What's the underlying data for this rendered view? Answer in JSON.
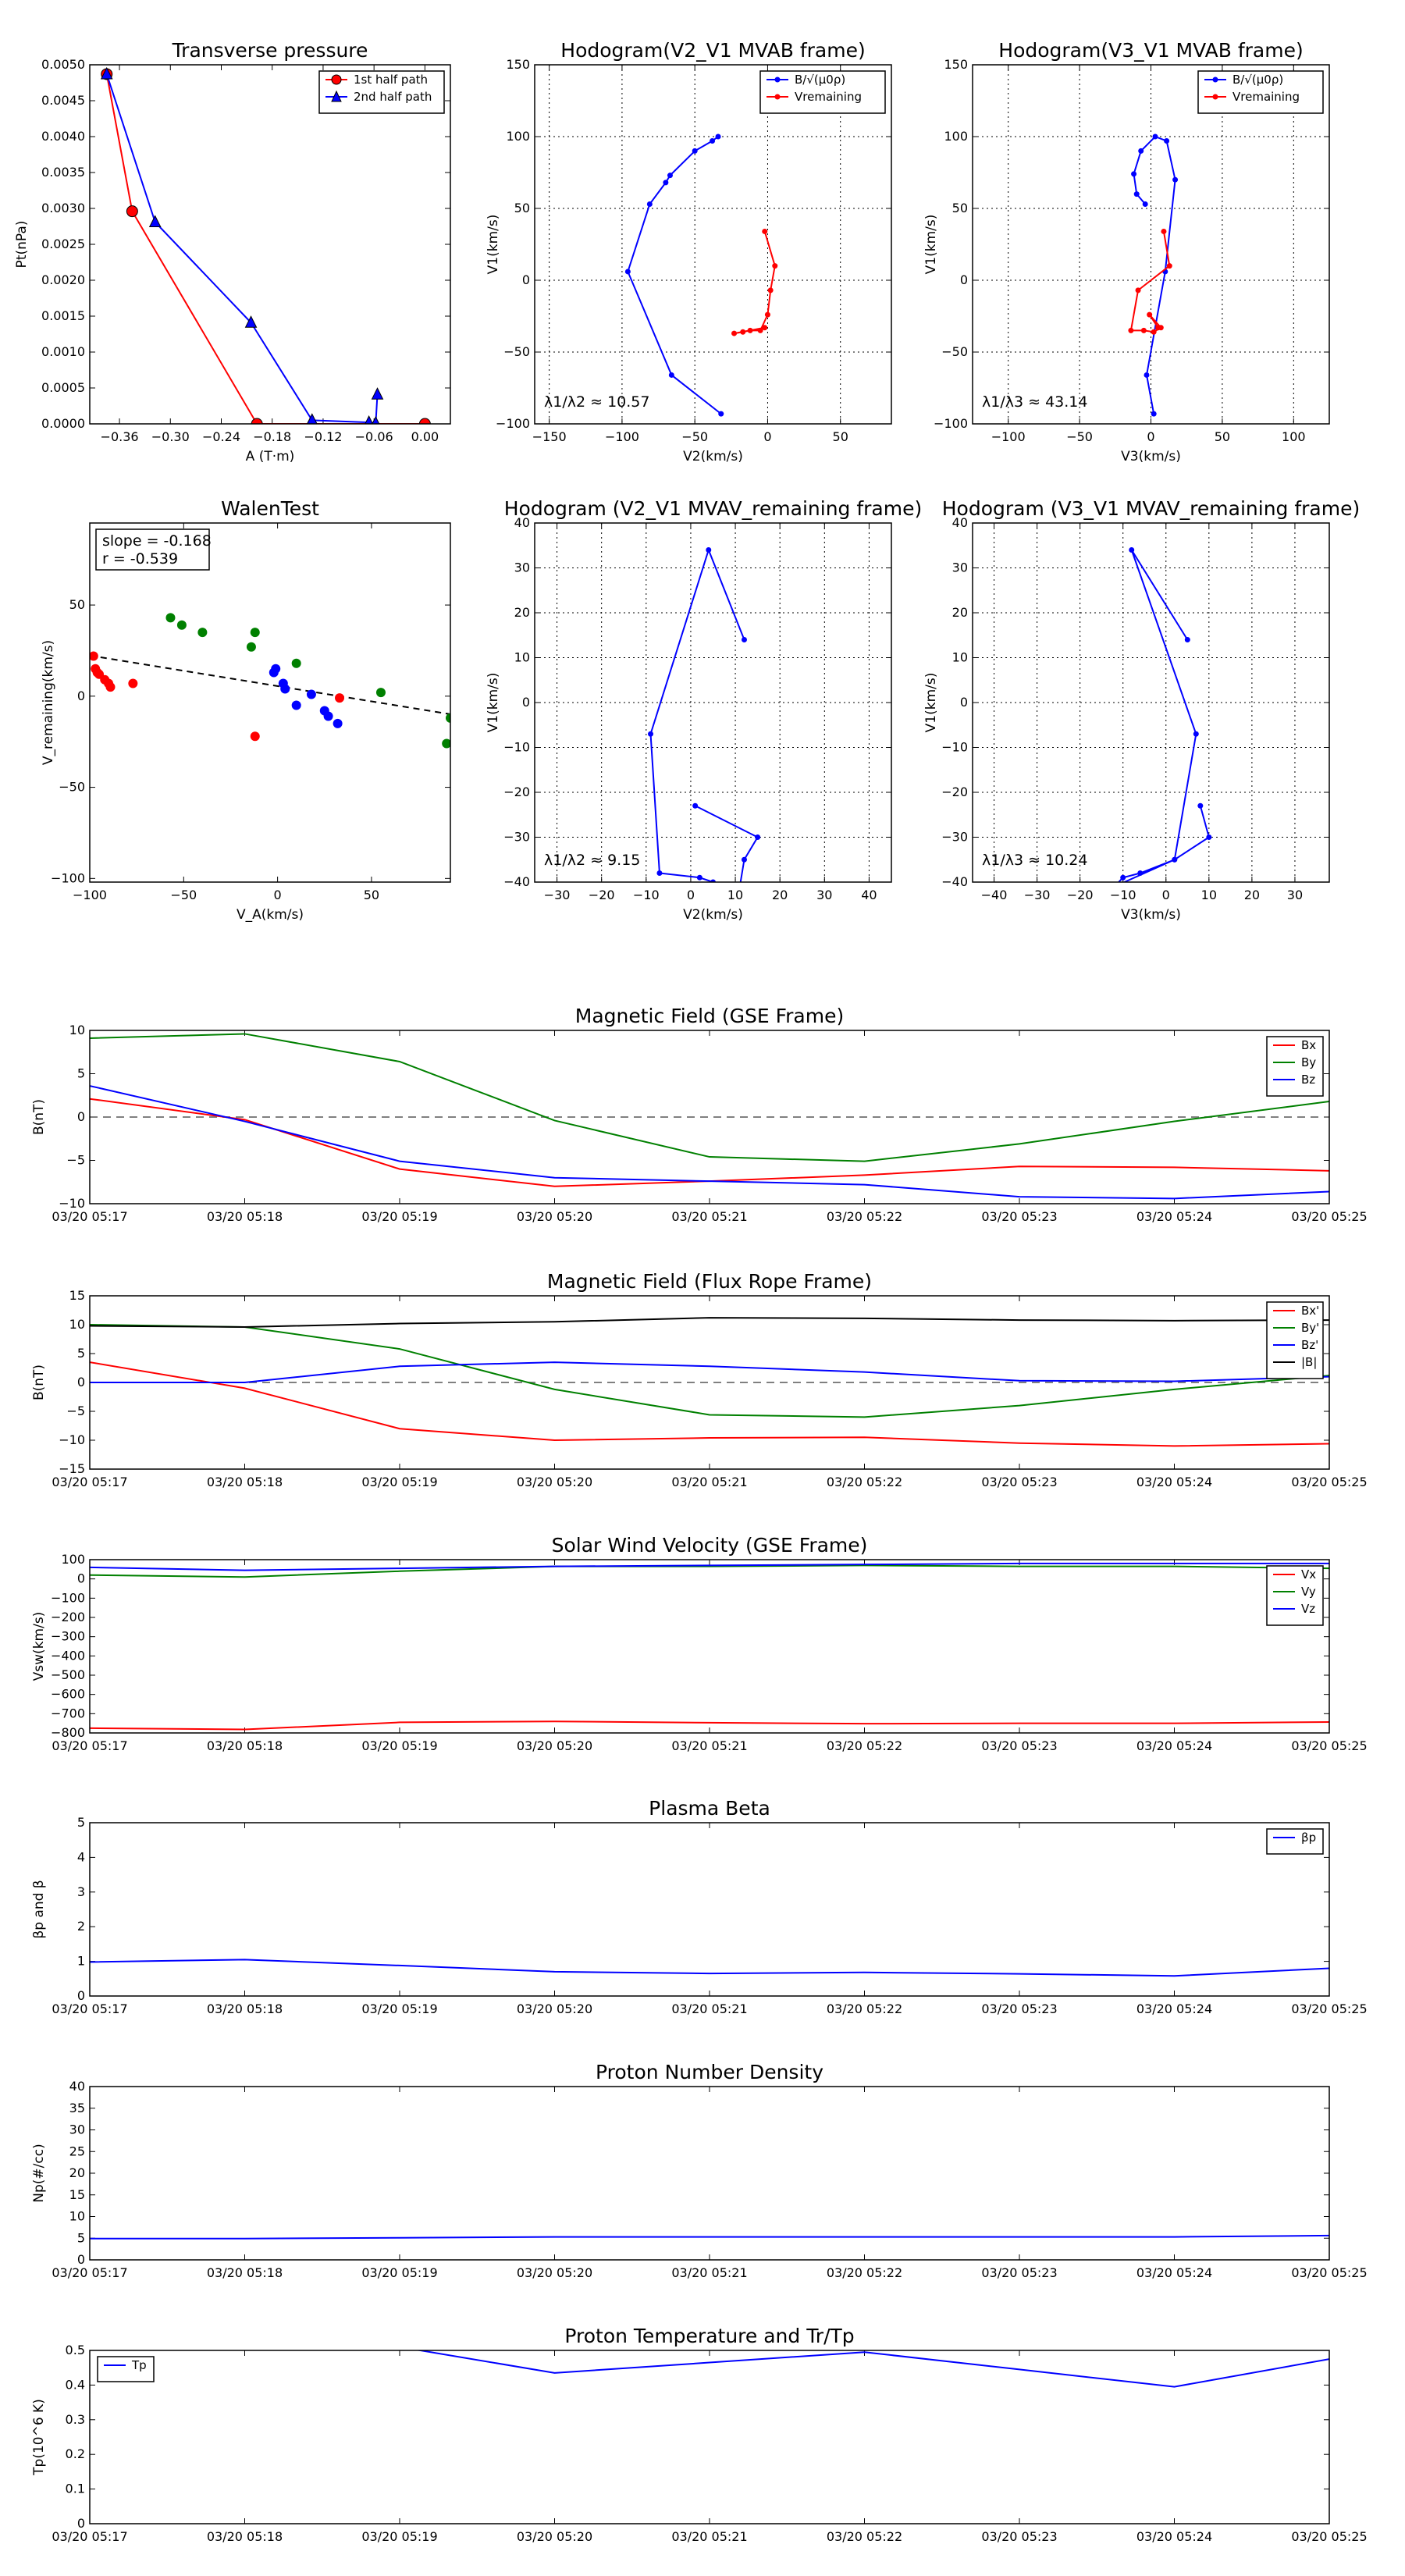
{
  "colors": {
    "red": "#ff0000",
    "green": "#008000",
    "blue": "#0000ff",
    "black": "#000000",
    "grey": "#808080"
  },
  "chart_data": [
    {
      "id": "transverse-pressure",
      "type": "line",
      "title": "Transverse pressure",
      "xlabel": "A (T·m)",
      "ylabel": "Pt(nPa)",
      "xlim": [
        -0.395,
        0.03
      ],
      "ylim": [
        0,
        0.005
      ],
      "xticks": [
        -0.36,
        -0.3,
        -0.24,
        -0.18,
        -0.12,
        -0.06,
        0.0
      ],
      "xticklabels": [
        "−0.36",
        "−0.30",
        "−0.24",
        "−0.18",
        "−0.12",
        "−0.06",
        "0.00"
      ],
      "yticks": [
        0,
        0.0005,
        0.001,
        0.0015,
        0.002,
        0.0025,
        0.003,
        0.0035,
        0.004,
        0.0045,
        0.005
      ],
      "yticklabels": [
        "0.0000",
        "0.0005",
        "0.0010",
        "0.0015",
        "0.0020",
        "0.0025",
        "0.0030",
        "0.0035",
        "0.0040",
        "0.0045",
        "0.0050"
      ],
      "grid": false,
      "legend": "top-right",
      "series": [
        {
          "name": "1st half path",
          "color": "#ff0000",
          "marker": "circle",
          "x": [
            -0.375,
            -0.345,
            -0.198,
            0.0
          ],
          "y": [
            0.00487,
            0.00296,
            0.0,
            0.0
          ]
        },
        {
          "name": "2nd half path",
          "color": "#0000ff",
          "marker": "triangle",
          "x": [
            -0.375,
            -0.318,
            -0.205,
            -0.133,
            -0.066,
            -0.058,
            -0.056
          ],
          "y": [
            0.00487,
            0.00281,
            0.00141,
            5e-05,
            2e-05,
            1e-05,
            0.00041
          ]
        }
      ]
    },
    {
      "id": "hodogram-v2-v1-mvab",
      "type": "line",
      "title": "Hodogram(V2_V1 MVAB frame)",
      "xlabel": "V2(km/s)",
      "ylabel": "V1(km/s)",
      "xlim": [
        -160,
        85
      ],
      "ylim": [
        -100,
        150
      ],
      "xticks": [
        -150,
        -100,
        -50,
        0,
        50
      ],
      "yticks": [
        -100,
        -50,
        0,
        50,
        100,
        150
      ],
      "grid": true,
      "legend": "top-right",
      "annotation": "λ1/λ2 ≈ 10.57",
      "series": [
        {
          "name": "B/√(μ0ρ)",
          "color": "#0000ff",
          "x": [
            -32,
            -66,
            -96,
            -81,
            -70,
            -67,
            -50,
            -38,
            -34
          ],
          "y": [
            -93,
            -66,
            6,
            53,
            68,
            73,
            90,
            97,
            100
          ]
        },
        {
          "name": "Vremaining",
          "color": "#ff0000",
          "x": [
            -2,
            5,
            2,
            0,
            -5,
            -12,
            -17,
            -23,
            -2
          ],
          "y": [
            34,
            10,
            -7,
            -24,
            -35,
            -35,
            -36,
            -37,
            -33
          ]
        }
      ]
    },
    {
      "id": "hodogram-v3-v1-mvab",
      "type": "line",
      "title": "Hodogram(V3_V1 MVAB frame)",
      "xlabel": "V3(km/s)",
      "ylabel": "V1(km/s)",
      "xlim": [
        -125,
        125
      ],
      "ylim": [
        -100,
        150
      ],
      "xticks": [
        -100,
        -50,
        0,
        50,
        100
      ],
      "yticks": [
        -100,
        -50,
        0,
        50,
        100,
        150
      ],
      "grid": true,
      "legend": "top-right",
      "annotation": "λ1/λ3 ≈ 43.14",
      "series": [
        {
          "name": "B/√(μ0ρ)",
          "color": "#0000ff",
          "x": [
            2,
            -3,
            10,
            17,
            11,
            3,
            -7,
            -12,
            -10,
            -4
          ],
          "y": [
            -93,
            -66,
            6,
            70,
            97,
            100,
            90,
            74,
            60,
            53
          ]
        },
        {
          "name": "Vremaining",
          "color": "#ff0000",
          "x": [
            9,
            13,
            -9,
            -14,
            -5,
            2,
            7,
            -1,
            5
          ],
          "y": [
            34,
            10,
            -7,
            -35,
            -35,
            -36,
            -33,
            -24,
            -33
          ]
        }
      ]
    },
    {
      "id": "walen-test",
      "type": "scatter",
      "title": "WalenTest",
      "xlabel": "V_A(km/s)",
      "ylabel": "V_remaining(km/s)",
      "xlim": [
        -100,
        92
      ],
      "ylim": [
        -102,
        95
      ],
      "xticks": [
        -100,
        -50,
        0,
        50
      ],
      "yticks": [
        -100,
        -50,
        0,
        50
      ],
      "grid": false,
      "annotation": [
        "slope = -0.168",
        "r = -0.539"
      ],
      "fit_line": {
        "x": [
          -100,
          92
        ],
        "y": [
          22.3,
          -9.9
        ]
      },
      "series": [
        {
          "name": "",
          "color": "#ff0000",
          "x": [
            -98,
            -97,
            -96,
            -95,
            -92,
            -90,
            -89,
            -77,
            -12,
            33
          ],
          "y": [
            22,
            15,
            13,
            12,
            9,
            7,
            5,
            7,
            -22,
            -1
          ]
        },
        {
          "name": "",
          "color": "#008000",
          "x": [
            -57,
            -51,
            -40,
            -14,
            -12,
            10,
            55,
            92,
            90
          ],
          "y": [
            43,
            39,
            35,
            27,
            35,
            18,
            2,
            -12,
            -26
          ]
        },
        {
          "name": "",
          "color": "#0000ff",
          "x": [
            -2,
            -1,
            3,
            4,
            10,
            18,
            25,
            27,
            32
          ],
          "y": [
            13,
            15,
            7,
            4,
            -5,
            1,
            -8,
            -11,
            -15
          ]
        }
      ]
    },
    {
      "id": "hodogram-v2-v1-mvav",
      "type": "line",
      "title": "Hodogram (V2_V1 MVAV_remaining frame)",
      "xlabel": "V2(km/s)",
      "ylabel": "V1(km/s)",
      "xlim": [
        -35,
        45
      ],
      "ylim": [
        -40,
        40
      ],
      "xticks": [
        -30,
        -20,
        -10,
        0,
        10,
        20,
        30,
        40
      ],
      "yticks": [
        -40,
        -30,
        -20,
        -10,
        0,
        10,
        20,
        30,
        40
      ],
      "grid": true,
      "annotation": "λ1/λ2 ≈ 9.15",
      "series": [
        {
          "name": "",
          "color": "#0000ff",
          "x": [
            12,
            4,
            -9,
            -7,
            2,
            5,
            11,
            12,
            15,
            1
          ],
          "y": [
            14,
            34,
            -7,
            -38,
            -39,
            -40,
            -41,
            -35,
            -30,
            -23
          ]
        }
      ]
    },
    {
      "id": "hodogram-v3-v1-mvav",
      "type": "line",
      "title": "Hodogram (V3_V1 MVAV_remaining frame)",
      "xlabel": "V3(km/s)",
      "ylabel": "V1(km/s)",
      "xlim": [
        -45,
        38
      ],
      "ylim": [
        -40,
        40
      ],
      "xticks": [
        -40,
        -30,
        -20,
        -10,
        0,
        10,
        20,
        30
      ],
      "yticks": [
        -40,
        -30,
        -20,
        -10,
        0,
        10,
        20,
        30,
        40
      ],
      "grid": true,
      "annotation": "λ1/λ3 ≈ 10.24",
      "series": [
        {
          "name": "",
          "color": "#0000ff",
          "x": [
            5,
            -8,
            7,
            2,
            -6,
            -10,
            -12,
            2,
            10,
            8
          ],
          "y": [
            14,
            34,
            -7,
            -35,
            -38,
            -39,
            -41,
            -35,
            -30,
            -23
          ]
        }
      ]
    },
    {
      "id": "magnetic-field-gse",
      "type": "line",
      "title": "Magnetic Field (GSE Frame)",
      "xlabel": "",
      "ylabel": "B(nT)",
      "categories": [
        "03/20 05:17",
        "03/20 05:18",
        "03/20 05:19",
        "03/20 05:20",
        "03/20 05:21",
        "03/20 05:22",
        "03/20 05:23",
        "03/20 05:24",
        "03/20 05:25"
      ],
      "ylim": [
        -10,
        10
      ],
      "yticks": [
        -10,
        -5,
        0,
        5,
        10
      ],
      "grid": false,
      "zero_line": true,
      "legend": "top-right",
      "series": [
        {
          "name": "Bx",
          "color": "#ff0000",
          "values": [
            2.1,
            -0.3,
            -6.0,
            -8.0,
            -7.4,
            -6.7,
            -5.7,
            -5.8,
            -6.2
          ]
        },
        {
          "name": "By",
          "color": "#008000",
          "values": [
            9.1,
            9.6,
            6.4,
            -0.4,
            -4.6,
            -5.1,
            -3.1,
            -0.5,
            1.8
          ]
        },
        {
          "name": "Bz",
          "color": "#0000ff",
          "values": [
            3.6,
            -0.5,
            -5.1,
            -7.0,
            -7.4,
            -7.8,
            -9.2,
            -9.4,
            -8.6
          ]
        }
      ]
    },
    {
      "id": "magnetic-field-flux-rope",
      "type": "line",
      "title": "Magnetic Field (Flux Rope Frame)",
      "xlabel": "",
      "ylabel": "B(nT)",
      "categories": [
        "03/20 05:17",
        "03/20 05:18",
        "03/20 05:19",
        "03/20 05:20",
        "03/20 05:21",
        "03/20 05:22",
        "03/20 05:23",
        "03/20 05:24",
        "03/20 05:25"
      ],
      "ylim": [
        -15,
        15
      ],
      "yticks": [
        -15,
        -10,
        -5,
        0,
        5,
        10,
        15
      ],
      "grid": false,
      "zero_line": true,
      "legend": "top-right",
      "series": [
        {
          "name": "Bx'",
          "color": "#ff0000",
          "values": [
            3.5,
            -1.0,
            -8.0,
            -10.0,
            -9.6,
            -9.5,
            -10.5,
            -11.0,
            -10.6
          ]
        },
        {
          "name": "By'",
          "color": "#008000",
          "values": [
            10.0,
            9.6,
            5.8,
            -1.2,
            -5.6,
            -6.0,
            -4.0,
            -1.2,
            1.2
          ]
        },
        {
          "name": "Bz'",
          "color": "#0000ff",
          "values": [
            0.0,
            0.0,
            2.8,
            3.5,
            2.8,
            1.8,
            0.3,
            0.2,
            1.0
          ]
        },
        {
          "name": "|B|",
          "color": "#000000",
          "values": [
            9.8,
            9.6,
            10.2,
            10.5,
            11.2,
            11.1,
            10.8,
            10.7,
            10.8
          ]
        }
      ]
    },
    {
      "id": "solar-wind-velocity",
      "type": "line",
      "title": "Solar Wind Velocity (GSE Frame)",
      "xlabel": "",
      "ylabel": "Vsw(km/s)",
      "categories": [
        "03/20 05:17",
        "03/20 05:18",
        "03/20 05:19",
        "03/20 05:20",
        "03/20 05:21",
        "03/20 05:22",
        "03/20 05:23",
        "03/20 05:24",
        "03/20 05:25"
      ],
      "ylim": [
        -800,
        100
      ],
      "yticks": [
        -800,
        -700,
        -600,
        -500,
        -400,
        -300,
        -200,
        -100,
        0,
        100
      ],
      "grid": false,
      "legend": "top-right",
      "series": [
        {
          "name": "Vx",
          "color": "#ff0000",
          "values": [
            -775,
            -782,
            -745,
            -740,
            -747,
            -752,
            -750,
            -750,
            -743
          ]
        },
        {
          "name": "Vy",
          "color": "#008000",
          "values": [
            20,
            10,
            40,
            65,
            65,
            70,
            65,
            65,
            55
          ]
        },
        {
          "name": "Vz",
          "color": "#0000ff",
          "values": [
            60,
            45,
            55,
            65,
            70,
            75,
            80,
            80,
            80
          ]
        }
      ]
    },
    {
      "id": "plasma-beta",
      "type": "line",
      "title": "Plasma Beta",
      "xlabel": "",
      "ylabel": "βp and β",
      "categories": [
        "03/20 05:17",
        "03/20 05:18",
        "03/20 05:19",
        "03/20 05:20",
        "03/20 05:21",
        "03/20 05:22",
        "03/20 05:23",
        "03/20 05:24",
        "03/20 05:25"
      ],
      "ylim": [
        0,
        5
      ],
      "yticks": [
        0,
        1,
        2,
        3,
        4,
        5
      ],
      "grid": false,
      "legend": "top-right",
      "series": [
        {
          "name": "βp",
          "color": "#0000ff",
          "values": [
            0.98,
            1.05,
            0.88,
            0.7,
            0.65,
            0.68,
            0.64,
            0.58,
            0.8
          ]
        }
      ]
    },
    {
      "id": "proton-number-density",
      "type": "line",
      "title": "Proton Number Density",
      "xlabel": "",
      "ylabel": "Np(#/cc)",
      "categories": [
        "03/20 05:17",
        "03/20 05:18",
        "03/20 05:19",
        "03/20 05:20",
        "03/20 05:21",
        "03/20 05:22",
        "03/20 05:23",
        "03/20 05:24",
        "03/20 05:25"
      ],
      "ylim": [
        0,
        40
      ],
      "yticks": [
        0,
        5,
        10,
        15,
        20,
        25,
        30,
        35,
        40
      ],
      "grid": false,
      "series": [
        {
          "name": "",
          "color": "#0000ff",
          "values": [
            4.9,
            4.9,
            5.1,
            5.3,
            5.3,
            5.3,
            5.3,
            5.3,
            5.6
          ]
        }
      ]
    },
    {
      "id": "proton-temperature",
      "type": "line",
      "title": "Proton Temperature and Tr/Tp",
      "xlabel": "",
      "ylabel": "Tp(10^6 K)",
      "categories": [
        "03/20 05:17",
        "03/20 05:18",
        "03/20 05:19",
        "03/20 05:20",
        "03/20 05:21",
        "03/20 05:22",
        "03/20 05:23",
        "03/20 05:24",
        "03/20 05:25"
      ],
      "ylim": [
        0,
        0.5
      ],
      "yticks": [
        0,
        0.1,
        0.2,
        0.3,
        0.4,
        0.5
      ],
      "grid": false,
      "legend": "top-left",
      "series": [
        {
          "name": "Tp",
          "color": "#0000ff",
          "values": [
            0.56,
            0.55,
            0.51,
            0.435,
            0.465,
            0.495,
            0.445,
            0.395,
            0.475
          ]
        }
      ]
    }
  ]
}
